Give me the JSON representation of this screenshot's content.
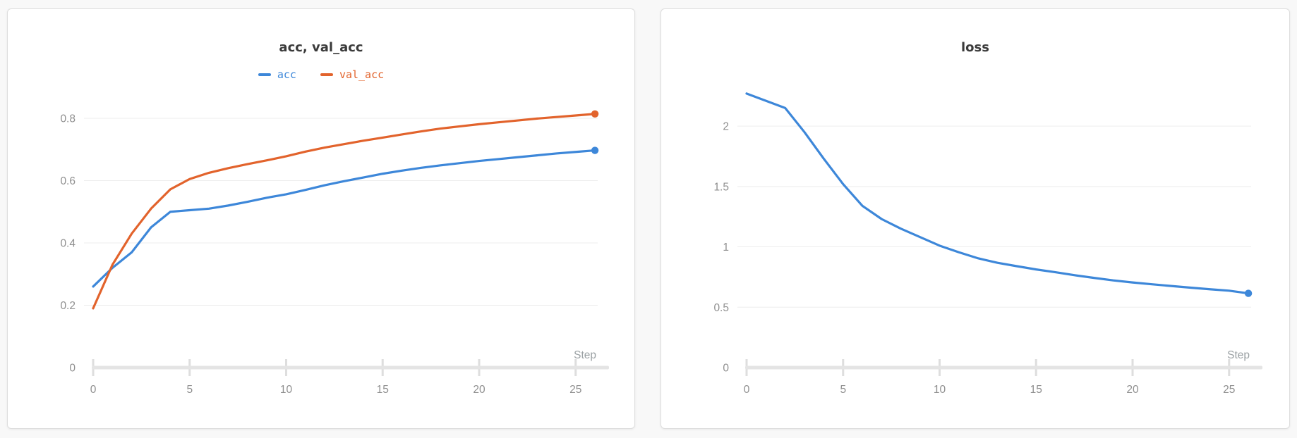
{
  "chart_data": [
    {
      "type": "line",
      "title": "acc, val_acc",
      "xlabel": "Step",
      "x": [
        0,
        1,
        2,
        3,
        4,
        5,
        6,
        7,
        8,
        9,
        10,
        11,
        12,
        13,
        14,
        15,
        16,
        17,
        18,
        19,
        20,
        21,
        22,
        23,
        24,
        25,
        26
      ],
      "series": [
        {
          "name": "acc",
          "color": "#3d87d9",
          "values": [
            0.26,
            0.32,
            0.37,
            0.45,
            0.5,
            0.505,
            0.51,
            0.52,
            0.532,
            0.545,
            0.556,
            0.57,
            0.585,
            0.598,
            0.61,
            0.622,
            0.632,
            0.641,
            0.649,
            0.656,
            0.663,
            0.669,
            0.675,
            0.681,
            0.687,
            0.692,
            0.697
          ]
        },
        {
          "name": "val_acc",
          "color": "#e2632c",
          "values": [
            0.19,
            0.33,
            0.43,
            0.51,
            0.572,
            0.605,
            0.625,
            0.64,
            0.653,
            0.665,
            0.678,
            0.693,
            0.706,
            0.717,
            0.728,
            0.738,
            0.748,
            0.758,
            0.767,
            0.774,
            0.781,
            0.787,
            0.793,
            0.799,
            0.804,
            0.809,
            0.814
          ]
        }
      ],
      "xticks": [
        0,
        5,
        10,
        15,
        20,
        25
      ],
      "yticks": [
        0,
        0.2,
        0.4,
        0.6,
        0.8
      ],
      "xlim": [
        0,
        26
      ],
      "ylim": [
        0,
        0.879
      ],
      "grid": true,
      "legend_position": "top",
      "end_marker": true
    },
    {
      "type": "line",
      "title": "loss",
      "xlabel": "Step",
      "x": [
        0,
        1,
        2,
        3,
        4,
        5,
        6,
        7,
        8,
        9,
        10,
        11,
        12,
        13,
        14,
        15,
        16,
        17,
        18,
        19,
        20,
        21,
        22,
        23,
        24,
        25,
        26
      ],
      "series": [
        {
          "name": "loss",
          "color": "#3d87d9",
          "values": [
            2.27,
            2.21,
            2.15,
            1.95,
            1.73,
            1.52,
            1.34,
            1.23,
            1.15,
            1.08,
            1.01,
            0.955,
            0.905,
            0.868,
            0.84,
            0.813,
            0.79,
            0.765,
            0.743,
            0.722,
            0.705,
            0.69,
            0.676,
            0.662,
            0.649,
            0.637,
            0.615
          ]
        }
      ],
      "xticks": [
        0,
        5,
        10,
        15,
        20,
        25
      ],
      "yticks": [
        0,
        0.5,
        1,
        1.5,
        2
      ],
      "xlim": [
        0,
        26
      ],
      "ylim": [
        0,
        2.269
      ],
      "grid": true,
      "legend_position": "none",
      "end_marker": true
    }
  ],
  "colors": {
    "accent_blue": "#3d87d9",
    "accent_orange": "#e2632c",
    "axis_bar": "#e4e4e4",
    "gridline": "#ededed",
    "tick": "#dedede",
    "tick_label": "#8f8f8f",
    "title_text": "#3b3b3b"
  }
}
